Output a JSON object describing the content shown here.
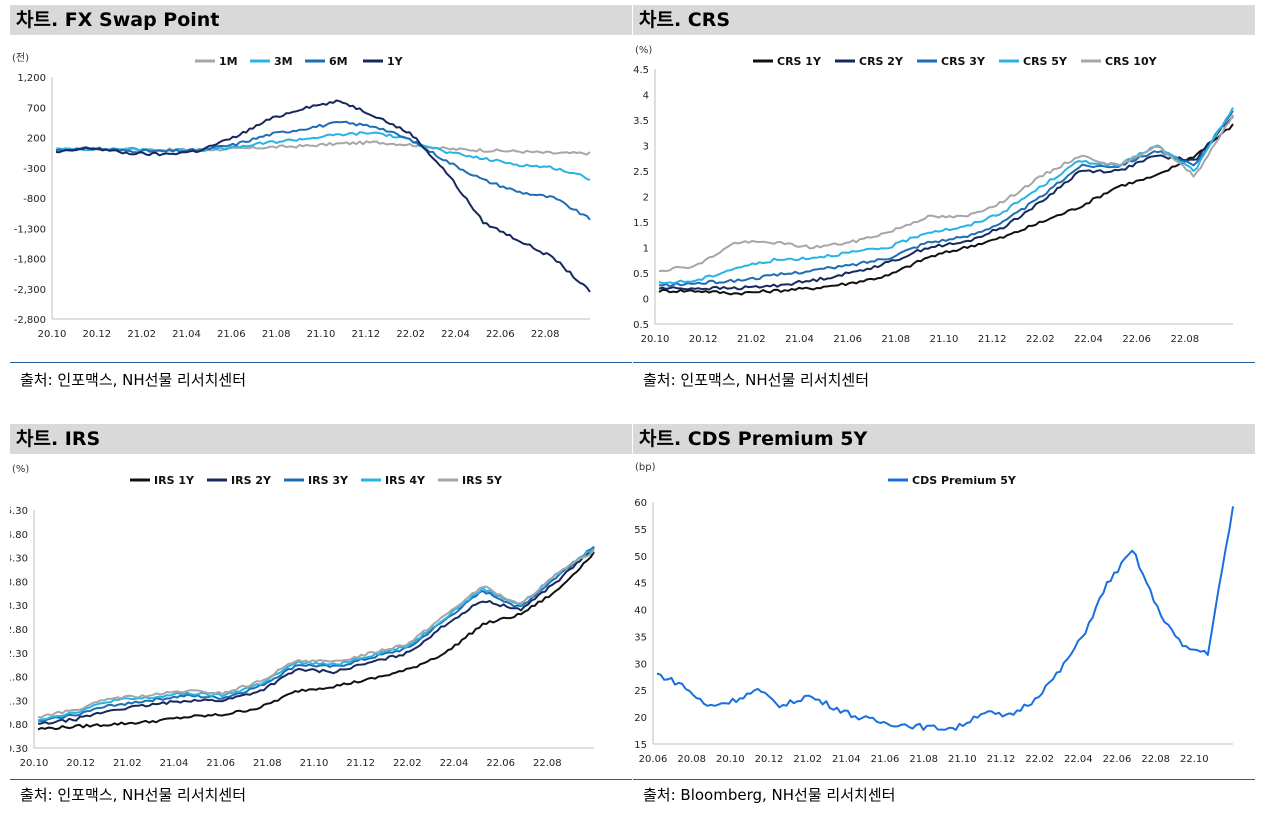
{
  "panels": [
    {
      "title": "차트. FX Swap Point",
      "source": "출처: 인포맥스, NH선물 리서치센터"
    },
    {
      "title": "차트. CRS",
      "source": "출처: 인포맥스, NH선물 리서치센터"
    },
    {
      "title": "차트. IRS",
      "source": "출처: 인포맥스, NH선물 리서치센터"
    },
    {
      "title": "차트. CDS Premium 5Y",
      "source": "출처: Bloomberg, NH선물 리서치센터"
    }
  ],
  "colors": {
    "black": "#111111",
    "navy": "#17285c",
    "blue": "#1f6db3",
    "sky": "#27b3e6",
    "gray": "#a6a6a6",
    "cds": "#1a6fe0",
    "rule": "#1f5f99"
  },
  "chart_data": [
    {
      "type": "line",
      "title": "차트. FX Swap Point",
      "unit": "(전)",
      "xticks": [
        "20.10",
        "20.12",
        "21.02",
        "21.04",
        "21.06",
        "21.08",
        "21.10",
        "21.12",
        "22.02",
        "22.04",
        "22.06",
        "22.08"
      ],
      "yticks": [
        "1,200",
        "700",
        "200",
        "-300",
        "-800",
        "-1,300",
        "-1,800",
        "-2,300",
        "-2,800"
      ],
      "ylim": [
        -2800,
        1200
      ],
      "legend_position": "top",
      "series": [
        {
          "name": "1M",
          "color": "gray",
          "values": [
            0,
            10,
            5,
            -5,
            0,
            10,
            40,
            60,
            100,
            120,
            80,
            10,
            -10,
            -30,
            -60,
            -60
          ]
        },
        {
          "name": "3M",
          "color": "sky",
          "values": [
            0,
            15,
            10,
            -10,
            -5,
            30,
            120,
            180,
            250,
            280,
            150,
            -50,
            -150,
            -250,
            -300,
            -480
          ]
        },
        {
          "name": "6M",
          "color": "blue",
          "values": [
            -10,
            20,
            -20,
            -30,
            -10,
            80,
            250,
            350,
            450,
            380,
            150,
            -200,
            -500,
            -700,
            -800,
            -1150
          ]
        },
        {
          "name": "1Y",
          "color": "navy",
          "values": [
            -50,
            30,
            -60,
            -80,
            -20,
            200,
            500,
            700,
            800,
            550,
            250,
            -400,
            -1200,
            -1500,
            -1800,
            -2350
          ]
        }
      ]
    },
    {
      "type": "line",
      "title": "차트. CRS",
      "unit": "(%)",
      "xticks": [
        "20.10",
        "20.12",
        "21.02",
        "21.04",
        "21.06",
        "21.08",
        "21.10",
        "21.12",
        "22.02",
        "22.04",
        "22.06",
        "22.08"
      ],
      "yticks": [
        "4.5",
        "4",
        "3.5",
        "3",
        "2.5",
        "2",
        "1.5",
        "1",
        "0.5",
        "0",
        "-0.5"
      ],
      "ylim": [
        -0.5,
        4.5
      ],
      "legend_position": "top",
      "series": [
        {
          "name": "CRS 1Y",
          "color": "black",
          "values": [
            0.15,
            0.15,
            0.1,
            0.15,
            0.2,
            0.3,
            0.45,
            0.8,
            1.0,
            1.2,
            1.5,
            1.8,
            2.2,
            2.4,
            2.8,
            3.4
          ]
        },
        {
          "name": "CRS 2Y",
          "color": "navy",
          "values": [
            0.2,
            0.2,
            0.2,
            0.25,
            0.35,
            0.5,
            0.7,
            1.0,
            1.1,
            1.4,
            1.9,
            2.5,
            2.5,
            2.8,
            2.7,
            3.6
          ]
        },
        {
          "name": "CRS 3Y",
          "color": "blue",
          "values": [
            0.25,
            0.3,
            0.35,
            0.45,
            0.55,
            0.65,
            0.8,
            1.1,
            1.2,
            1.5,
            2.0,
            2.6,
            2.6,
            2.9,
            2.6,
            3.7
          ]
        },
        {
          "name": "CRS 5Y",
          "color": "sky",
          "values": [
            0.3,
            0.35,
            0.6,
            0.75,
            0.8,
            0.9,
            1.0,
            1.3,
            1.4,
            1.7,
            2.2,
            2.7,
            2.6,
            3.0,
            2.5,
            3.75
          ]
        },
        {
          "name": "CRS 10Y",
          "color": "gray",
          "values": [
            0.55,
            0.65,
            1.1,
            1.1,
            1.0,
            1.1,
            1.3,
            1.6,
            1.6,
            1.9,
            2.4,
            2.8,
            2.6,
            3.0,
            2.4,
            3.6
          ]
        }
      ]
    },
    {
      "type": "line",
      "title": "차트. IRS",
      "unit": "(%)",
      "xticks": [
        "20.10",
        "20.12",
        "21.02",
        "21.04",
        "21.06",
        "21.08",
        "21.10",
        "21.12",
        "22.02",
        "22.04",
        "22.06",
        "22.08"
      ],
      "yticks": [
        "5.30",
        "4.80",
        "4.30",
        "3.80",
        "3.30",
        "2.80",
        "2.30",
        "1.80",
        "1.30",
        "0.80",
        "0.30"
      ],
      "ylim": [
        0.3,
        5.3
      ],
      "legend_position": "top",
      "series": [
        {
          "name": "IRS 1Y",
          "color": "black",
          "values": [
            0.7,
            0.75,
            0.8,
            0.85,
            0.95,
            1.0,
            1.15,
            1.5,
            1.6,
            1.75,
            1.95,
            2.3,
            2.9,
            3.1,
            3.6,
            4.4
          ]
        },
        {
          "name": "IRS 2Y",
          "color": "navy",
          "values": [
            0.8,
            0.9,
            1.1,
            1.2,
            1.3,
            1.3,
            1.5,
            1.95,
            1.9,
            2.1,
            2.3,
            2.9,
            3.4,
            3.2,
            3.8,
            4.5
          ]
        },
        {
          "name": "IRS 3Y",
          "color": "blue",
          "values": [
            0.85,
            1.0,
            1.2,
            1.3,
            1.4,
            1.35,
            1.6,
            2.05,
            2.0,
            2.2,
            2.4,
            3.0,
            3.6,
            3.25,
            3.9,
            4.55
          ]
        },
        {
          "name": "IRS 4Y",
          "color": "sky",
          "values": [
            0.9,
            1.05,
            1.3,
            1.35,
            1.45,
            1.4,
            1.65,
            2.1,
            2.05,
            2.25,
            2.45,
            3.05,
            3.65,
            3.3,
            3.95,
            4.5
          ]
        },
        {
          "name": "IRS 5Y",
          "color": "gray",
          "values": [
            0.95,
            1.1,
            1.35,
            1.4,
            1.5,
            1.45,
            1.7,
            2.15,
            2.1,
            2.3,
            2.5,
            3.1,
            3.7,
            3.3,
            3.95,
            4.45
          ]
        }
      ]
    },
    {
      "type": "line",
      "title": "차트. CDS Premium 5Y",
      "unit": "(bp)",
      "xticks": [
        "20.06",
        "20.08",
        "20.10",
        "20.12",
        "21.02",
        "21.04",
        "21.06",
        "21.08",
        "21.10",
        "21.12",
        "22.02",
        "22.04",
        "22.06",
        "22.08",
        "22.10"
      ],
      "yticks": [
        "60",
        "55",
        "50",
        "45",
        "40",
        "35",
        "30",
        "25",
        "20",
        "15"
      ],
      "ylim": [
        15,
        60
      ],
      "legend_position": "top",
      "series": [
        {
          "name": "CDS Premium 5Y",
          "color": "cds",
          "values": [
            28,
            26,
            22,
            23,
            25,
            22,
            24,
            22,
            20,
            19,
            18.5,
            18,
            18,
            21,
            20,
            23,
            28,
            35,
            45,
            51,
            40,
            33,
            32,
            59
          ]
        }
      ]
    }
  ]
}
